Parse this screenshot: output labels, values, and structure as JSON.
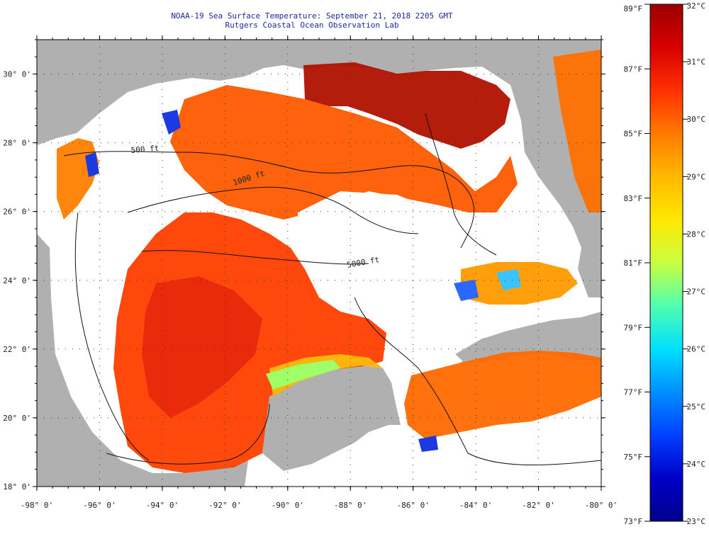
{
  "title": {
    "line1": "NOAA-19 Sea Surface Temperature:  September 21, 2018 2205 GMT",
    "line2": "Rutgers Coastal Ocean Observation Lab"
  },
  "map": {
    "lon_range": [
      -98,
      -80
    ],
    "lat_range": [
      18,
      31
    ],
    "lon_ticks": [
      "-98° 0'",
      "-96° 0'",
      "-94° 0'",
      "-92° 0'",
      "-90° 0'",
      "-88° 0'",
      "-86° 0'",
      "-84° 0'",
      "-82° 0'",
      "-80° 0'"
    ],
    "lat_ticks": [
      "18° 0'",
      "20° 0'",
      "22° 0'",
      "24° 0'",
      "26° 0'",
      "28° 0'",
      "30° 0'"
    ],
    "land_color": "#b0b0b0",
    "nodata_color": "#ffffff",
    "contour_labels": [
      "500 ft",
      "1000 ft",
      "5000 ft"
    ]
  },
  "colorbar": {
    "fahrenheit_labels": [
      "89°F",
      "87°F",
      "85°F",
      "83°F",
      "81°F",
      "79°F",
      "77°F",
      "75°F",
      "73°F"
    ],
    "celsius_labels": [
      "32°C",
      "31°C",
      "30°C",
      "29°C",
      "28°C",
      "27°C",
      "26°C",
      "25°C",
      "24°C",
      "23°C"
    ],
    "colors": [
      "#9b0000",
      "#d80000",
      "#ff3000",
      "#ff7a00",
      "#ffb800",
      "#ffe800",
      "#c8ff40",
      "#50ffb0",
      "#00e0ff",
      "#0090ff",
      "#0040ff",
      "#0000c8",
      "#00008a"
    ]
  }
}
